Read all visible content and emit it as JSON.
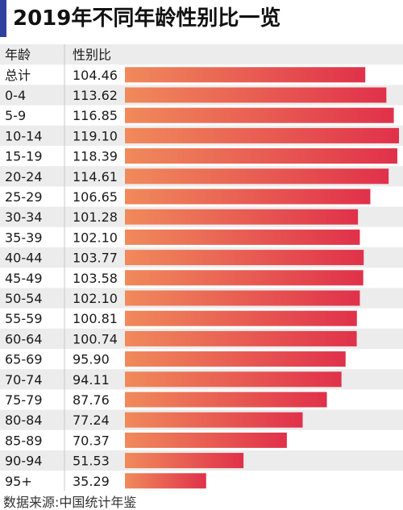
{
  "title": "2019年不同年龄性别比一览",
  "source": "数据来源:中国统计年鉴",
  "chart_data": {
    "type": "bar",
    "orientation": "horizontal",
    "header": {
      "category": "年龄",
      "value": "性别比"
    },
    "categories": [
      "总计",
      "0-4",
      "5-9",
      "10-14",
      "15-19",
      "20-24",
      "25-29",
      "30-34",
      "35-39",
      "40-44",
      "45-49",
      "50-54",
      "55-59",
      "60-64",
      "65-69",
      "70-74",
      "75-79",
      "80-84",
      "85-89",
      "90-94",
      "95+"
    ],
    "values": [
      104.46,
      113.62,
      116.85,
      119.1,
      118.39,
      114.61,
      106.65,
      101.28,
      102.1,
      103.77,
      103.58,
      102.1,
      100.81,
      100.74,
      95.9,
      94.11,
      87.76,
      77.24,
      70.37,
      51.53,
      35.29
    ],
    "value_labels": [
      "104.46",
      "113.62",
      "116.85",
      "119.10",
      "118.39",
      "114.61",
      "106.65",
      "101.28",
      "102.10",
      "103.77",
      "103.58",
      "102.10",
      "100.81",
      "100.74",
      "95.90",
      "94.11",
      "87.76",
      "77.24",
      "70.37",
      "51.53",
      "35.29"
    ],
    "xlim": [
      0,
      119.1
    ],
    "grid": false,
    "colors": {
      "bar_start": "#f08a5b",
      "bar_end": "#e0314a",
      "row_alt": "#ececec",
      "title_accent": "#2f3fa0"
    }
  }
}
